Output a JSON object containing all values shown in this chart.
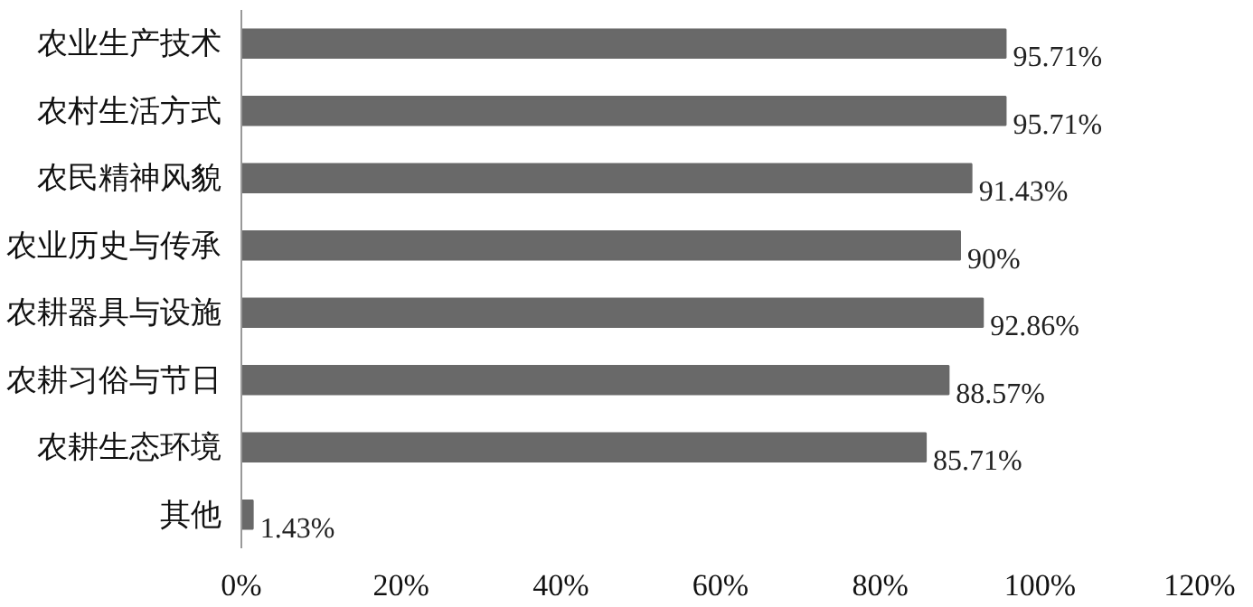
{
  "chart_data": {
    "type": "bar",
    "orientation": "horizontal",
    "categories": [
      "农业生产技术",
      "农村生活方式",
      "农民精神风貌",
      "农业历史与传承",
      "农耕器具与设施",
      "农耕习俗与节日",
      "农耕生态环境",
      "其他"
    ],
    "values": [
      95.71,
      95.71,
      91.43,
      90,
      92.86,
      88.57,
      85.71,
      1.43
    ],
    "value_labels": [
      "95.71%",
      "95.71%",
      "91.43%",
      "90%",
      "92.86%",
      "88.57%",
      "85.71%",
      "1.43%"
    ],
    "color": "#696969",
    "xlim": [
      0,
      120
    ],
    "xticks": [
      {
        "value": 0,
        "label": "0%"
      },
      {
        "value": 20,
        "label": "20%"
      },
      {
        "value": 40,
        "label": "40%"
      },
      {
        "value": 60,
        "label": "60%"
      },
      {
        "value": 80,
        "label": "80%"
      },
      {
        "value": 100,
        "label": "100%"
      },
      {
        "value": 120,
        "label": "120%"
      }
    ],
    "grid": false
  }
}
